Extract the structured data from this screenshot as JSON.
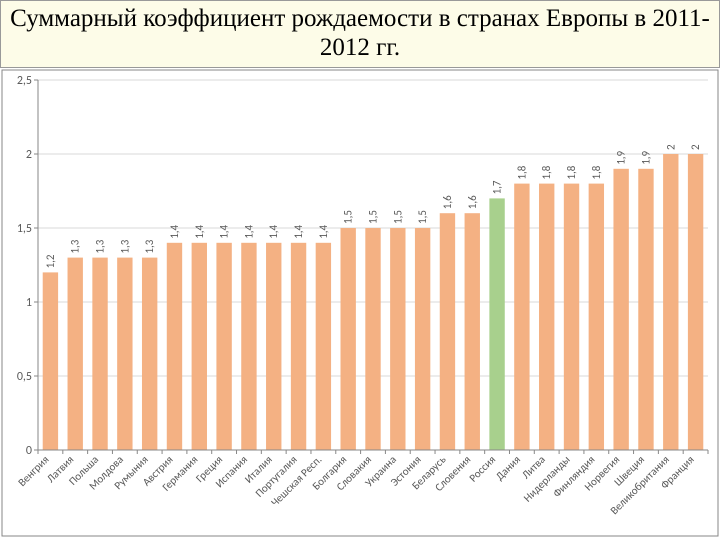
{
  "title": "Суммарный коэффициент рождаемости в странах Европы в 2011-2012 гг.",
  "chart": {
    "type": "bar",
    "ylim": [
      0,
      2.5
    ],
    "ytick_step": 0.5,
    "yticks": [
      "0",
      "0,5",
      "1",
      "1,5",
      "2",
      "2,5"
    ],
    "bar_fill": "#f4b183",
    "highlight_fill": "#a8d08d",
    "grid_color": "#d9d9d9",
    "axis_color": "#878787",
    "background": "#ffffff",
    "label_fontsize": 11,
    "ytick_fontsize": 12,
    "title_fontsize": 25,
    "bars": [
      {
        "cat": "Венгрия",
        "val": 1.2,
        "label": "1,2",
        "hl": false
      },
      {
        "cat": "Латвия",
        "val": 1.3,
        "label": "1,3",
        "hl": false
      },
      {
        "cat": "Польша",
        "val": 1.3,
        "label": "1,3",
        "hl": false
      },
      {
        "cat": "Молдова",
        "val": 1.3,
        "label": "1,3",
        "hl": false
      },
      {
        "cat": "Румыния",
        "val": 1.3,
        "label": "1,3",
        "hl": false
      },
      {
        "cat": "Австрия",
        "val": 1.4,
        "label": "1,4",
        "hl": false
      },
      {
        "cat": "Германия",
        "val": 1.4,
        "label": "1,4",
        "hl": false
      },
      {
        "cat": "Греция",
        "val": 1.4,
        "label": "1,4",
        "hl": false
      },
      {
        "cat": "Испания",
        "val": 1.4,
        "label": "1,4",
        "hl": false
      },
      {
        "cat": "Италия",
        "val": 1.4,
        "label": "1,4",
        "hl": false
      },
      {
        "cat": "Португалия",
        "val": 1.4,
        "label": "1,4",
        "hl": false
      },
      {
        "cat": "Чешская Респ.",
        "val": 1.4,
        "label": "1,4",
        "hl": false
      },
      {
        "cat": "Болгария",
        "val": 1.5,
        "label": "1,5",
        "hl": false
      },
      {
        "cat": "Словакия",
        "val": 1.5,
        "label": "1,5",
        "hl": false
      },
      {
        "cat": "Украина",
        "val": 1.5,
        "label": "1,5",
        "hl": false
      },
      {
        "cat": "Эстония",
        "val": 1.5,
        "label": "1,5",
        "hl": false
      },
      {
        "cat": "Беларусь",
        "val": 1.6,
        "label": "1,6",
        "hl": false
      },
      {
        "cat": "Словения",
        "val": 1.6,
        "label": "1,6",
        "hl": false
      },
      {
        "cat": "Россия",
        "val": 1.7,
        "label": "1,7",
        "hl": true
      },
      {
        "cat": "Дания",
        "val": 1.8,
        "label": "1,8",
        "hl": false
      },
      {
        "cat": "Литва",
        "val": 1.8,
        "label": "1,8",
        "hl": false
      },
      {
        "cat": "Нидерланды",
        "val": 1.8,
        "label": "1,8",
        "hl": false
      },
      {
        "cat": "Финляндия",
        "val": 1.8,
        "label": "1,8",
        "hl": false
      },
      {
        "cat": "Норвегия",
        "val": 1.9,
        "label": "1,9",
        "hl": false
      },
      {
        "cat": "Швеция",
        "val": 1.9,
        "label": "1,9",
        "hl": false
      },
      {
        "cat": "Великобритания",
        "val": 2.0,
        "label": "2",
        "hl": false
      },
      {
        "cat": "Франция",
        "val": 2.0,
        "label": "2",
        "hl": false
      }
    ]
  }
}
